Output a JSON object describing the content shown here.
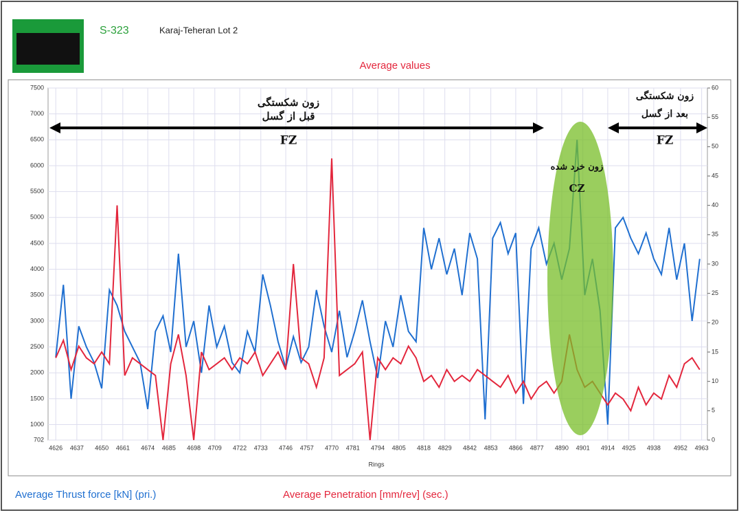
{
  "header": {
    "code": "S-323",
    "project": "Karaj-Teheran Lot 2"
  },
  "chart_data": {
    "type": "line",
    "title": "Average values",
    "x_label": "Rings",
    "x": [
      4626,
      4630,
      4634,
      4638,
      4642,
      4646,
      4650,
      4654,
      4658,
      4662,
      4666,
      4670,
      4674,
      4678,
      4682,
      4686,
      4690,
      4694,
      4698,
      4702,
      4706,
      4710,
      4714,
      4718,
      4722,
      4726,
      4730,
      4734,
      4738,
      4742,
      4746,
      4750,
      4754,
      4758,
      4762,
      4766,
      4770,
      4774,
      4778,
      4782,
      4786,
      4790,
      4794,
      4798,
      4802,
      4806,
      4810,
      4814,
      4818,
      4822,
      4826,
      4830,
      4834,
      4838,
      4842,
      4846,
      4850,
      4854,
      4858,
      4862,
      4866,
      4870,
      4874,
      4878,
      4882,
      4886,
      4890,
      4894,
      4898,
      4902,
      4906,
      4910,
      4914,
      4918,
      4922,
      4926,
      4930,
      4934,
      4938,
      4942,
      4946,
      4950,
      4954,
      4958,
      4962
    ],
    "series": [
      {
        "name": "Average Thrust force [kN] (pri.)",
        "color": "#1f6fd0",
        "values": [
          2300,
          3700,
          1500,
          2900,
          2500,
          2200,
          1700,
          3600,
          3300,
          2800,
          2500,
          2200,
          1300,
          2800,
          3100,
          2400,
          4300,
          2500,
          3000,
          2000,
          3300,
          2500,
          2900,
          2200,
          2000,
          2800,
          2400,
          3900,
          3300,
          2600,
          2100,
          2700,
          2200,
          2500,
          3600,
          2900,
          2400,
          3200,
          2300,
          2800,
          3400,
          2600,
          1900,
          3000,
          2500,
          3500,
          2800,
          2600,
          4800,
          4000,
          4600,
          3900,
          4400,
          3500,
          4700,
          4200,
          1100,
          4600,
          4900,
          4300,
          4700,
          1400,
          4400,
          4800,
          4100,
          4500,
          3800,
          4400,
          6500,
          3500,
          4200,
          3200,
          1000,
          4800,
          5000,
          4600,
          4300,
          4700,
          4200,
          3900,
          4800,
          3800,
          4500,
          3000,
          4200
        ]
      },
      {
        "name": "Average Penetration [mm/rev] (sec.)",
        "color": "#e3263c",
        "axis": "y2",
        "values": [
          14,
          17,
          12,
          16,
          14,
          13,
          15,
          13,
          40,
          11,
          14,
          13,
          12,
          11,
          0,
          13,
          18,
          11,
          0,
          15,
          12,
          13,
          14,
          12,
          14,
          13,
          15,
          11,
          13,
          15,
          12,
          30,
          14,
          13,
          9,
          14,
          48,
          11,
          12,
          13,
          15,
          0,
          14,
          12,
          14,
          13,
          16,
          14,
          10,
          11,
          9,
          12,
          10,
          11,
          10,
          12,
          11,
          10,
          9,
          11,
          8,
          10,
          7,
          9,
          10,
          8,
          10,
          18,
          12,
          9,
          10,
          8,
          6,
          8,
          7,
          5,
          9,
          6,
          8,
          7,
          11,
          9,
          13,
          14,
          12
        ]
      }
    ],
    "xlim": [
      4622,
      4966
    ],
    "xticks": [
      4626,
      4637,
      4650,
      4661,
      4674,
      4685,
      4698,
      4709,
      4722,
      4733,
      4746,
      4757,
      4770,
      4781,
      4794,
      4805,
      4818,
      4829,
      4842,
      4853,
      4866,
      4877,
      4890,
      4901,
      4914,
      4925,
      4938,
      4952,
      4963
    ],
    "ylim": [
      702,
      7500
    ],
    "yticks": [
      702,
      1000,
      1500,
      2000,
      2500,
      3000,
      3500,
      4000,
      4500,
      5000,
      5500,
      6000,
      6500,
      7000,
      7500
    ],
    "y2lim": [
      0,
      60
    ],
    "y2ticks": [
      0,
      5,
      10,
      15,
      20,
      25,
      30,
      35,
      40,
      45,
      50,
      55,
      60
    ],
    "grid": true,
    "annotations": [
      "زون شکستگی",
      "قبل از گسل",
      "FZ",
      "زون خرد شده",
      "CZ",
      "زون شکستگی",
      "بعد از گسل",
      "FZ"
    ]
  }
}
